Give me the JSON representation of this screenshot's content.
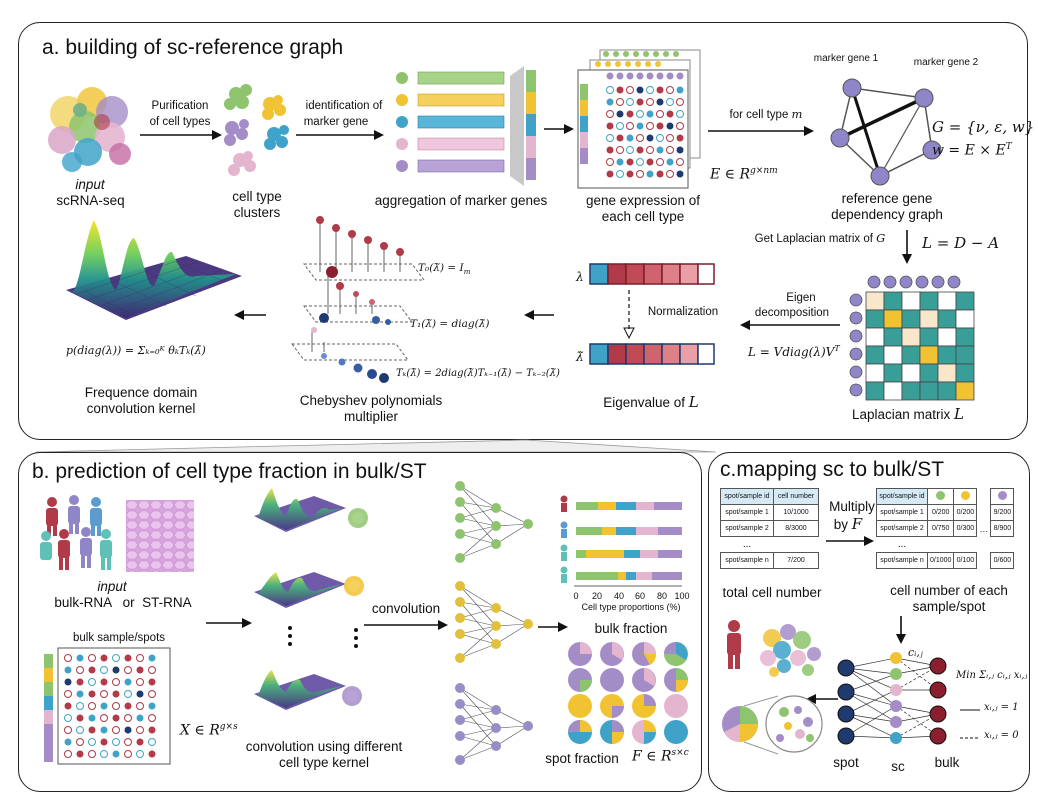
{
  "panel_a": {
    "title": "a. building of sc-reference graph",
    "input_italic": "input",
    "input_label": "scRNA-seq",
    "purification": [
      "Purification",
      "of cell types"
    ],
    "clusters": [
      "cell type",
      "clusters"
    ],
    "identification": [
      "identification of",
      "marker gene"
    ],
    "aggregation": "aggregation of marker genes",
    "gene_expr": [
      "gene expression of",
      "each cell type"
    ],
    "E_formula": "E ∈ R",
    "E_sup": "g×nm",
    "for_cell_type": "for cell type",
    "m": "m",
    "marker_gene_1": "marker gene 1",
    "marker_gene_2": "marker gene 2",
    "G_formula": "G = {ν, ε, w}",
    "w_formula": "w = E × E",
    "w_sup": "T",
    "ref_graph": [
      "reference gene",
      "dependency graph"
    ],
    "get_laplacian": "Get Laplacian matrix of",
    "G": "G",
    "L_formula": "L = D − A",
    "eigen_decomp": [
      "Eigen",
      "decomposition"
    ],
    "L_decomp": "L = Vdiag(λ)V",
    "L_sup": "T",
    "laplacian_matrix": "Laplacian matrix",
    "L": "L",
    "lambda": "λ",
    "lambda_tilde": "λ̃",
    "normalization": "Normalization",
    "eigenvalue": "Eigenvalue of",
    "T0": "T₀(λ̃) = I",
    "T0_sub": "m",
    "T1": "T₁(λ̃) = diag(λ̃)",
    "Tk": "Tₖ(λ̃) = 2diag(λ̃)Tₖ₋₁(λ̃) − Tₖ₋₂(λ̃)",
    "chebyshev": [
      "Chebyshev polynomials",
      "multiplier"
    ],
    "p_formula": "p(diag(λ)) = Σₖ₌₀ᴷ θₖTₖ(λ̃)",
    "freq_kernel": [
      "Frequence domain",
      "convolution kernel"
    ]
  },
  "panel_b": {
    "title": "b. prediction of cell type fraction in bulk/ST",
    "input_italic": "input",
    "inputs": "bulk-RNA   or  ST-RNA",
    "bulk_sample": "bulk sample/spots",
    "X_formula": "X ∈ R",
    "X_sup": "g×s",
    "conv_kernel": [
      "convolution using different",
      "cell type kernel"
    ],
    "convolution": "convolution",
    "bulk_fraction": "bulk fraction",
    "spot_fraction": "spot fraction",
    "F_formula": "F ∈ R",
    "F_sup": "s×c",
    "ticks": [
      "0",
      "20",
      "40",
      "60",
      "80",
      "100"
    ],
    "axis_label": "Cell type proportions (%)"
  },
  "panel_c": {
    "title": "c.mapping sc to bulk/ST",
    "table1_header": [
      "spot/sample id",
      "cell number"
    ],
    "table1_rows": [
      [
        "spot/sample 1",
        "10/1000"
      ],
      [
        "spot/sample 2",
        "8/3000"
      ],
      [
        "...",
        ""
      ],
      [
        "spot/sample n",
        "7/200"
      ]
    ],
    "multiply": [
      "Multiply",
      "by"
    ],
    "F": "F",
    "table2_header": "spot/sample id",
    "table2_rows": [
      [
        "spot/sample 1",
        "0/200",
        "0/200",
        "9/200"
      ],
      [
        "spot/sample 2",
        "0/750",
        "0/300",
        "8/900"
      ],
      [
        "...",
        "",
        "",
        ""
      ],
      [
        "spot/sample n",
        "0/1000",
        "0/100",
        "0/600"
      ]
    ],
    "total_cell": "total cell number",
    "cell_number_each": [
      "cell number of each",
      "sample/spot"
    ],
    "c_ij": "cᵢ,ⱼ",
    "min_formula": "Min Σᵢ,ⱼ cᵢ,ⱼ xᵢ,ⱼ",
    "x1": "xᵢ,ⱼ = 1",
    "x0": "xᵢ,ⱼ = 0",
    "spot": "spot",
    "sc": "sc",
    "bulk": "bulk"
  },
  "colors": {
    "green": "#8dc46d",
    "yellow": "#f1c232",
    "blue": "#3fa3c9",
    "pink": "#e4b5cf",
    "purple": "#a48dc7",
    "red": "#b03a48",
    "navy": "#1f3a6e",
    "teal": "#3a9e98",
    "node": "#8e86c8"
  }
}
